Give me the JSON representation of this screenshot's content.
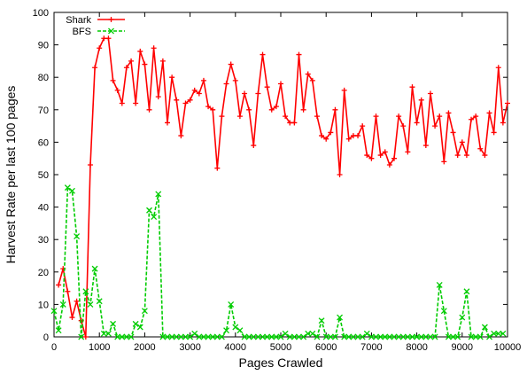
{
  "chart_data": {
    "type": "line",
    "xlabel": "Pages Crawled",
    "ylabel": "Harvest Rate per last 100 pages",
    "xlim": [
      0,
      10000
    ],
    "ylim": [
      0,
      100
    ],
    "x_ticks": [
      "0",
      "1000",
      "2000",
      "3000",
      "4000",
      "5000",
      "6000",
      "7000",
      "8000",
      "9000",
      "10000"
    ],
    "y_ticks": [
      "0",
      "10",
      "20",
      "30",
      "40",
      "50",
      "60",
      "70",
      "80",
      "90",
      "100"
    ],
    "grid": false,
    "legend_position": "top-left",
    "series": [
      {
        "name": "Shark",
        "color": "#ff0000",
        "line_style": "solid",
        "marker": "plus",
        "points": [
          [
            100,
            16
          ],
          [
            200,
            21
          ],
          [
            300,
            14
          ],
          [
            400,
            6
          ],
          [
            500,
            11
          ],
          [
            600,
            5
          ],
          [
            700,
            0
          ],
          [
            800,
            53
          ],
          [
            900,
            83
          ],
          [
            1000,
            89
          ],
          [
            1100,
            92
          ],
          [
            1200,
            92
          ],
          [
            1300,
            79
          ],
          [
            1400,
            76
          ],
          [
            1500,
            72
          ],
          [
            1600,
            83
          ],
          [
            1700,
            85
          ],
          [
            1800,
            72
          ],
          [
            1900,
            88
          ],
          [
            2000,
            84
          ],
          [
            2100,
            70
          ],
          [
            2200,
            89
          ],
          [
            2300,
            74
          ],
          [
            2400,
            85
          ],
          [
            2500,
            66
          ],
          [
            2600,
            80
          ],
          [
            2700,
            73
          ],
          [
            2800,
            62
          ],
          [
            2900,
            72
          ],
          [
            3000,
            73
          ],
          [
            3100,
            76
          ],
          [
            3200,
            75
          ],
          [
            3300,
            79
          ],
          [
            3400,
            71
          ],
          [
            3500,
            70
          ],
          [
            3600,
            52
          ],
          [
            3700,
            68
          ],
          [
            3800,
            78
          ],
          [
            3900,
            84
          ],
          [
            4000,
            79
          ],
          [
            4100,
            68
          ],
          [
            4200,
            75
          ],
          [
            4300,
            70
          ],
          [
            4400,
            59
          ],
          [
            4500,
            75
          ],
          [
            4600,
            87
          ],
          [
            4700,
            77
          ],
          [
            4800,
            70
          ],
          [
            4900,
            71
          ],
          [
            5000,
            78
          ],
          [
            5100,
            68
          ],
          [
            5200,
            66
          ],
          [
            5300,
            66
          ],
          [
            5400,
            87
          ],
          [
            5500,
            70
          ],
          [
            5600,
            81
          ],
          [
            5700,
            79
          ],
          [
            5800,
            68
          ],
          [
            5900,
            62
          ],
          [
            6000,
            61
          ],
          [
            6100,
            63
          ],
          [
            6200,
            70
          ],
          [
            6300,
            50
          ],
          [
            6400,
            76
          ],
          [
            6500,
            61
          ],
          [
            6600,
            62
          ],
          [
            6700,
            62
          ],
          [
            6800,
            65
          ],
          [
            6900,
            56
          ],
          [
            7000,
            55
          ],
          [
            7100,
            68
          ],
          [
            7200,
            56
          ],
          [
            7300,
            57
          ],
          [
            7400,
            53
          ],
          [
            7500,
            55
          ],
          [
            7600,
            68
          ],
          [
            7700,
            65
          ],
          [
            7800,
            57
          ],
          [
            7900,
            77
          ],
          [
            8000,
            66
          ],
          [
            8100,
            73
          ],
          [
            8200,
            59
          ],
          [
            8300,
            75
          ],
          [
            8400,
            65
          ],
          [
            8500,
            68
          ],
          [
            8600,
            54
          ],
          [
            8700,
            69
          ],
          [
            8800,
            63
          ],
          [
            8900,
            56
          ],
          [
            9000,
            60
          ],
          [
            9100,
            56
          ],
          [
            9200,
            67
          ],
          [
            9300,
            68
          ],
          [
            9400,
            58
          ],
          [
            9500,
            56
          ],
          [
            9600,
            69
          ],
          [
            9700,
            63
          ],
          [
            9800,
            83
          ],
          [
            9900,
            66
          ],
          [
            10000,
            72
          ]
        ]
      },
      {
        "name": "BFS",
        "color": "#00cc00",
        "line_style": "dashed",
        "marker": "x",
        "points": [
          [
            0,
            8
          ],
          [
            100,
            2
          ],
          [
            200,
            10
          ],
          [
            300,
            46
          ],
          [
            400,
            45
          ],
          [
            500,
            31
          ],
          [
            600,
            0
          ],
          [
            700,
            14
          ],
          [
            800,
            10
          ],
          [
            900,
            21
          ],
          [
            1000,
            11
          ],
          [
            1100,
            1
          ],
          [
            1200,
            1
          ],
          [
            1300,
            4
          ],
          [
            1400,
            0
          ],
          [
            1500,
            0
          ],
          [
            1600,
            0
          ],
          [
            1700,
            0
          ],
          [
            1800,
            4
          ],
          [
            1900,
            3
          ],
          [
            2000,
            8
          ],
          [
            2100,
            39
          ],
          [
            2200,
            37
          ],
          [
            2300,
            44
          ],
          [
            2400,
            0
          ],
          [
            2500,
            0
          ],
          [
            2600,
            0
          ],
          [
            2700,
            0
          ],
          [
            2800,
            0
          ],
          [
            2900,
            0
          ],
          [
            3000,
            0
          ],
          [
            3100,
            1
          ],
          [
            3200,
            0
          ],
          [
            3300,
            0
          ],
          [
            3400,
            0
          ],
          [
            3500,
            0
          ],
          [
            3600,
            0
          ],
          [
            3700,
            0
          ],
          [
            3800,
            2
          ],
          [
            3900,
            10
          ],
          [
            4000,
            3
          ],
          [
            4100,
            2
          ],
          [
            4200,
            0
          ],
          [
            4300,
            0
          ],
          [
            4400,
            0
          ],
          [
            4500,
            0
          ],
          [
            4600,
            0
          ],
          [
            4700,
            0
          ],
          [
            4800,
            0
          ],
          [
            4900,
            0
          ],
          [
            5000,
            0
          ],
          [
            5100,
            1
          ],
          [
            5200,
            0
          ],
          [
            5300,
            0
          ],
          [
            5400,
            0
          ],
          [
            5500,
            0
          ],
          [
            5600,
            1
          ],
          [
            5700,
            1
          ],
          [
            5800,
            0
          ],
          [
            5900,
            5
          ],
          [
            6000,
            0
          ],
          [
            6100,
            0
          ],
          [
            6200,
            0
          ],
          [
            6300,
            6
          ],
          [
            6400,
            0
          ],
          [
            6500,
            0
          ],
          [
            6600,
            0
          ],
          [
            6700,
            0
          ],
          [
            6800,
            0
          ],
          [
            6900,
            1
          ],
          [
            7000,
            0
          ],
          [
            7100,
            0
          ],
          [
            7200,
            0
          ],
          [
            7300,
            0
          ],
          [
            7400,
            0
          ],
          [
            7500,
            0
          ],
          [
            7600,
            0
          ],
          [
            7700,
            0
          ],
          [
            7800,
            0
          ],
          [
            7900,
            0
          ],
          [
            8000,
            0
          ],
          [
            8100,
            0
          ],
          [
            8200,
            0
          ],
          [
            8300,
            0
          ],
          [
            8400,
            0
          ],
          [
            8500,
            16
          ],
          [
            8600,
            8
          ],
          [
            8700,
            0
          ],
          [
            8800,
            0
          ],
          [
            8900,
            0
          ],
          [
            9000,
            6
          ],
          [
            9100,
            14
          ],
          [
            9200,
            0
          ],
          [
            9300,
            0
          ],
          [
            9400,
            0
          ],
          [
            9500,
            3
          ],
          [
            9600,
            0
          ],
          [
            9700,
            1
          ],
          [
            9800,
            1
          ],
          [
            9900,
            1
          ]
        ]
      }
    ]
  }
}
